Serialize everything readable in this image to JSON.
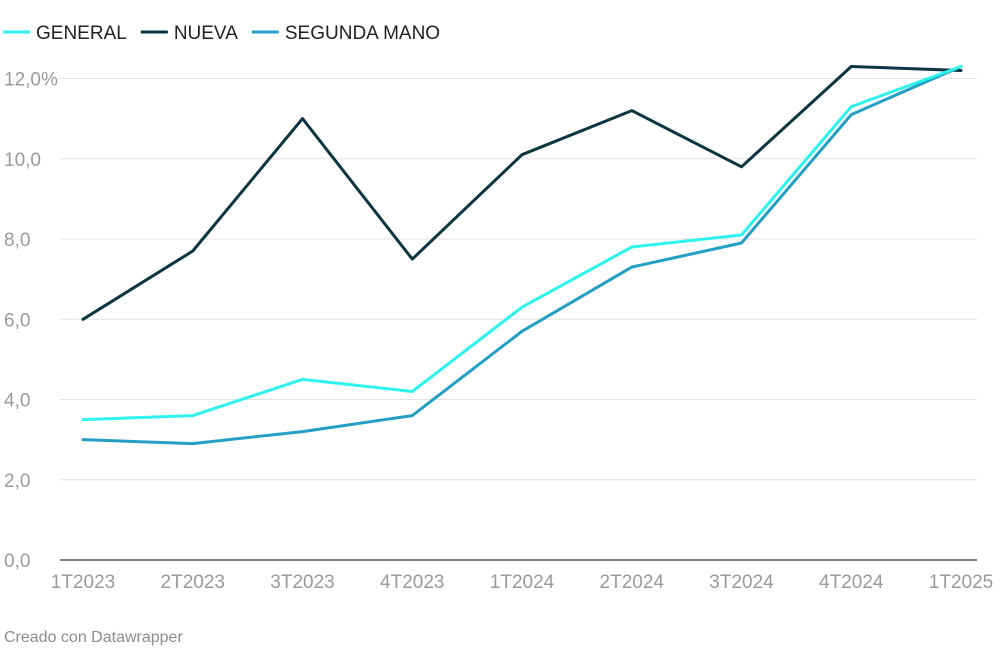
{
  "chart_data": {
    "type": "line",
    "categories": [
      "1T2023",
      "2T2023",
      "3T2023",
      "4T2023",
      "1T2024",
      "2T2024",
      "3T2024",
      "4T2024",
      "1T2025"
    ],
    "series": [
      {
        "name": "GENERAL",
        "color": "#2ef2ee",
        "values": [
          3.5,
          3.6,
          4.5,
          4.2,
          6.3,
          7.8,
          8.1,
          11.3,
          12.3
        ]
      },
      {
        "name": "NUEVA",
        "color": "#0b3540",
        "values": [
          6.0,
          7.7,
          11.0,
          7.5,
          10.1,
          11.2,
          9.8,
          12.3,
          12.2
        ]
      },
      {
        "name": "SEGUNDA MANO",
        "color": "#239fc3",
        "values": [
          3.0,
          2.9,
          3.2,
          3.6,
          5.7,
          7.3,
          7.9,
          11.1,
          12.3
        ]
      }
    ],
    "y_ticks": [
      "0,0",
      "2,0",
      "4,0",
      "6,0",
      "8,0",
      "10,0",
      "12,0%"
    ],
    "ylim": [
      0,
      12
    ],
    "grid": true,
    "legend_position": "top-left"
  },
  "footer": {
    "credit": "Creado con Datawrapper"
  }
}
